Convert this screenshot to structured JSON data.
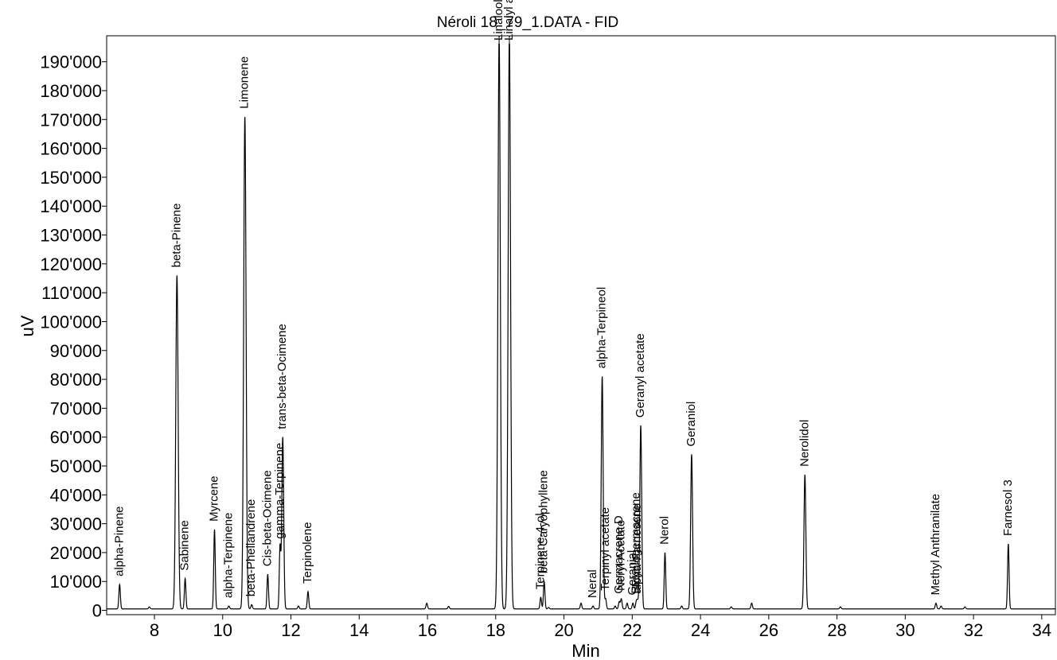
{
  "chart_data": {
    "type": "line",
    "title": "Néroli 18_79_1.DATA - FID",
    "xlabel": "Min",
    "ylabel": "uV",
    "xlim": [
      6.6,
      34.4
    ],
    "ylim": [
      -1500,
      199000
    ],
    "x_ticks": [
      8,
      10,
      12,
      14,
      16,
      18,
      20,
      22,
      24,
      26,
      28,
      30,
      32,
      34
    ],
    "x_tick_labels": [
      "8",
      "10",
      "12",
      "14",
      "16",
      "18",
      "20",
      "22",
      "24",
      "26",
      "28",
      "30",
      "32",
      "34"
    ],
    "y_ticks": [
      0,
      10000,
      20000,
      30000,
      40000,
      50000,
      60000,
      70000,
      80000,
      90000,
      100000,
      110000,
      120000,
      130000,
      140000,
      150000,
      160000,
      170000,
      180000,
      190000
    ],
    "y_tick_labels": [
      "0",
      "10'000",
      "20'000",
      "30'000",
      "40'000",
      "50'000",
      "60'000",
      "70'000",
      "80'000",
      "90'000",
      "100'000",
      "110'000",
      "120'000",
      "130'000",
      "140'000",
      "150'000",
      "160'000",
      "170'000",
      "180'000",
      "190'000"
    ],
    "grid": false,
    "series": [
      {
        "baseline": 500,
        "peaks": [
          {
            "label": "alpha-Pinene",
            "x": 6.98,
            "y": 9000
          },
          {
            "label": "beta-Pinene",
            "x": 8.66,
            "y": 116000
          },
          {
            "label": "Sabinene",
            "x": 8.9,
            "y": 11000
          },
          {
            "label": "Myrcene",
            "x": 9.76,
            "y": 28000
          },
          {
            "label": "alpha-Terpinene",
            "x": 10.18,
            "y": 1500
          },
          {
            "label": "Limonene",
            "x": 10.65,
            "y": 171000
          },
          {
            "label": "beta-Phellandrene",
            "x": 10.85,
            "y": 2000
          },
          {
            "label": "Cis-beta-Ocimene",
            "x": 11.32,
            "y": 12500
          },
          {
            "label": "gamma-Terpinene",
            "x": 11.68,
            "y": 22000
          },
          {
            "label": "trans-beta-Ocimene",
            "x": 11.76,
            "y": 60000
          },
          {
            "label": "Terpinolene",
            "x": 12.5,
            "y": 6500
          },
          {
            "label": "Linalool",
            "x": 18.1,
            "y": 199000
          },
          {
            "label": "Linalyl acetate",
            "x": 18.4,
            "y": 199000
          },
          {
            "label": "Terpinene-4-ol",
            "x": 19.32,
            "y": 4500
          },
          {
            "label": "beta-Caryophyllene",
            "x": 19.42,
            "y": 10000
          },
          {
            "label": "Neral",
            "x": 20.85,
            "y": 1500
          },
          {
            "label": "alpha-Terpineol",
            "x": 21.12,
            "y": 81000
          },
          {
            "label": "Terpinyl acetate",
            "x": 21.22,
            "y": 4000
          },
          {
            "label": "Germacrene D",
            "x": 21.62,
            "y": 3000
          },
          {
            "label": "Neryl Acetate",
            "x": 21.68,
            "y": 4000
          },
          {
            "label": "Geranial",
            "x": 22.02,
            "y": 2500
          },
          {
            "label": "Bicyclogermacrene",
            "x": 22.12,
            "y": 3000
          },
          {
            "label": "alpha-Farnesene",
            "x": 22.16,
            "y": 3000
          },
          {
            "label": "Geranyl acetate",
            "x": 22.25,
            "y": 64000
          },
          {
            "label": "Nerol",
            "x": 22.96,
            "y": 20000
          },
          {
            "label": "Geraniol",
            "x": 23.74,
            "y": 54000
          },
          {
            "label": "Nerolidol",
            "x": 27.06,
            "y": 47000
          },
          {
            "label": "Methyl Anthranilate",
            "x": 30.9,
            "y": 2500
          },
          {
            "label": "Farnesol 3",
            "x": 33.02,
            "y": 23000
          }
        ],
        "minor_peaks": [
          {
            "x": 7.85,
            "y": 1200
          },
          {
            "x": 12.22,
            "y": 1500
          },
          {
            "x": 15.98,
            "y": 2500
          },
          {
            "x": 16.62,
            "y": 1400
          },
          {
            "x": 19.55,
            "y": 1000
          },
          {
            "x": 20.5,
            "y": 2500
          },
          {
            "x": 21.5,
            "y": 1500
          },
          {
            "x": 21.85,
            "y": 2500
          },
          {
            "x": 23.45,
            "y": 1500
          },
          {
            "x": 24.9,
            "y": 1200
          },
          {
            "x": 25.5,
            "y": 2500
          },
          {
            "x": 28.1,
            "y": 1200
          },
          {
            "x": 31.05,
            "y": 1500
          },
          {
            "x": 31.75,
            "y": 1200
          }
        ]
      }
    ]
  }
}
